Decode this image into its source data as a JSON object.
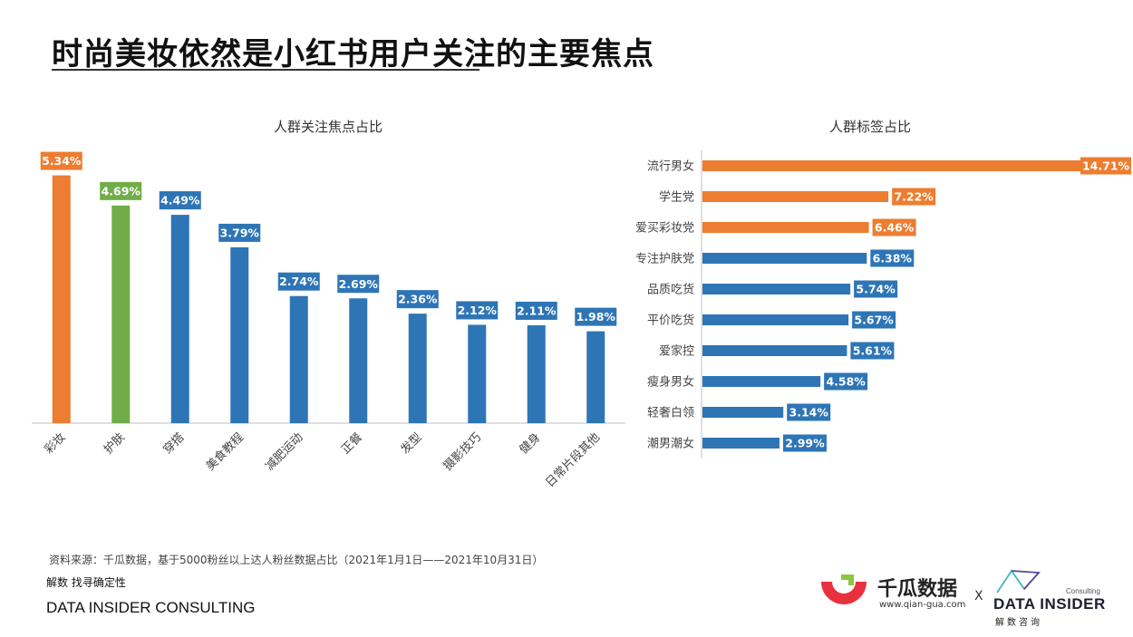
{
  "header": {
    "title": "时尚美妆依然是小红书用户关注的主要焦点"
  },
  "chart_data": [
    {
      "type": "bar",
      "title": "人群关注焦点占比",
      "categories": [
        "彩妆",
        "护肤",
        "穿搭",
        "美食教程",
        "减肥运动",
        "正餐",
        "发型",
        "摄影技巧",
        "健身",
        "日常片段其他"
      ],
      "values": [
        5.34,
        4.69,
        4.49,
        3.79,
        2.74,
        2.69,
        2.36,
        2.12,
        2.11,
        1.98
      ],
      "labels": [
        "5.34%",
        "4.69%",
        "4.49%",
        "3.79%",
        "2.74%",
        "2.69%",
        "2.36%",
        "2.12%",
        "2.11%",
        "1.98%"
      ],
      "colors": [
        "#ed7d31",
        "#70ad47",
        "#2e75b6",
        "#2e75b6",
        "#2e75b6",
        "#2e75b6",
        "#2e75b6",
        "#2e75b6",
        "#2e75b6",
        "#2e75b6"
      ],
      "ylim": [
        0,
        5.8
      ],
      "grid": false,
      "xlabel": "",
      "ylabel": ""
    },
    {
      "type": "bar",
      "orientation": "horizontal",
      "title": "人群标签占比",
      "categories": [
        "流行男女",
        "学生党",
        "爱买彩妆党",
        "专注护肤党",
        "品质吃货",
        "平价吃货",
        "爱家控",
        "瘦身男女",
        "轻奢白领",
        "潮男潮女"
      ],
      "values": [
        14.71,
        7.22,
        6.46,
        6.38,
        5.74,
        5.67,
        5.61,
        4.58,
        3.14,
        2.99
      ],
      "labels": [
        "14.71%",
        "7.22%",
        "6.46%",
        "6.38%",
        "5.74%",
        "5.67%",
        "5.61%",
        "4.58%",
        "3.14%",
        "2.99%"
      ],
      "colors": [
        "#ed7d31",
        "#ed7d31",
        "#ed7d31",
        "#2e75b6",
        "#2e75b6",
        "#2e75b6",
        "#2e75b6",
        "#2e75b6",
        "#2e75b6",
        "#2e75b6"
      ],
      "xlim": [
        0,
        14.71
      ],
      "grid": false,
      "xlabel": "",
      "ylabel": ""
    }
  ],
  "footer": {
    "source": "资料来源：千瓜数据，基于5000粉丝以上达人粉丝数据占比（2021年1月1日——2021年10月31日）",
    "slogan": "解数 找寻确定性",
    "company": "DATA INSIDER CONSULTING"
  },
  "logos": {
    "qiangua_name": "千瓜数据",
    "qiangua_url": "www.qian-gua.com",
    "separator": "X",
    "di_consulting": "Consulting",
    "di_name": "DATA INSIDER",
    "di_sub": "解数咨询"
  },
  "theme": {
    "orange": "#ed7d31",
    "green": "#70ad47",
    "blue": "#2e75b6",
    "qiangua_red": "#e8303e",
    "qiangua_green": "#8cc63f",
    "di_teal": "#3fb6c2"
  }
}
